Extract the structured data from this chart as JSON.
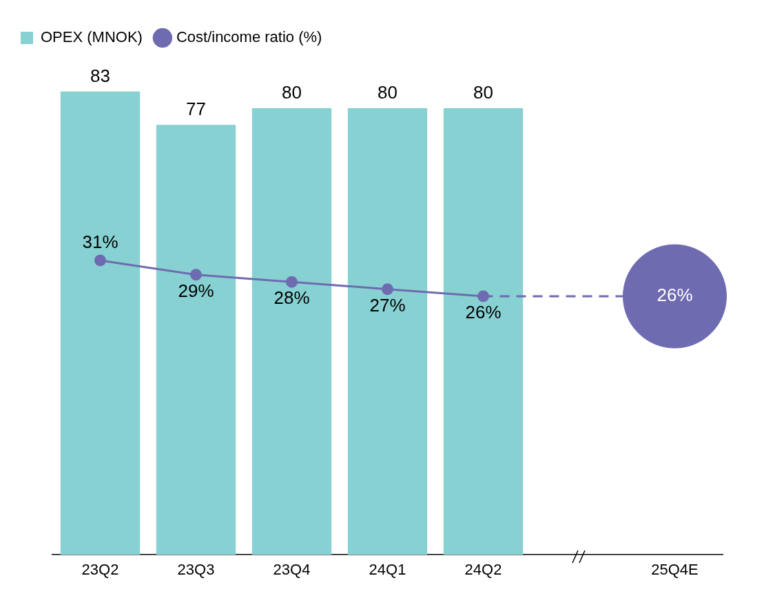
{
  "chart_data": {
    "type": "bar",
    "legend": "top left",
    "categories": [
      "23Q2",
      "23Q3",
      "23Q4",
      "24Q1",
      "24Q2",
      null,
      "25Q4E"
    ],
    "tick_labels": "x",
    "series": [
      {
        "name": "OPEX (MNOK)",
        "color": "#87d1d2",
        "values": [
          83,
          77,
          80,
          80,
          80,
          null,
          null
        ],
        "value_labels": [
          "83",
          "77",
          "80",
          "80",
          "80",
          null,
          null
        ]
      },
      {
        "name": "Cost/income ratio (%)",
        "type": "line",
        "axis": "y2",
        "color": "#6e6bb0",
        "marker": "circle",
        "line_style": "solid",
        "values": [
          31,
          29,
          28,
          27,
          26,
          null,
          null
        ],
        "value_labels": [
          "31%",
          "29%",
          "28%",
          "27%",
          "26%",
          null,
          null
        ]
      },
      {
        "type": "line",
        "axis": "y2",
        "color": "#6e6bb0",
        "marker": "none",
        "line_style": "dashed",
        "values": [
          null,
          null,
          null,
          null,
          26,
          null,
          26
        ]
      },
      {
        "type": "scatter",
        "axis": "y2",
        "color": "#6e6bb0",
        "marker": "circle",
        "values": [
          null,
          null,
          null,
          null,
          null,
          null,
          26
        ],
        "value_labels": [
          null,
          null,
          null,
          null,
          null,
          null,
          "26%"
        ]
      }
    ]
  }
}
